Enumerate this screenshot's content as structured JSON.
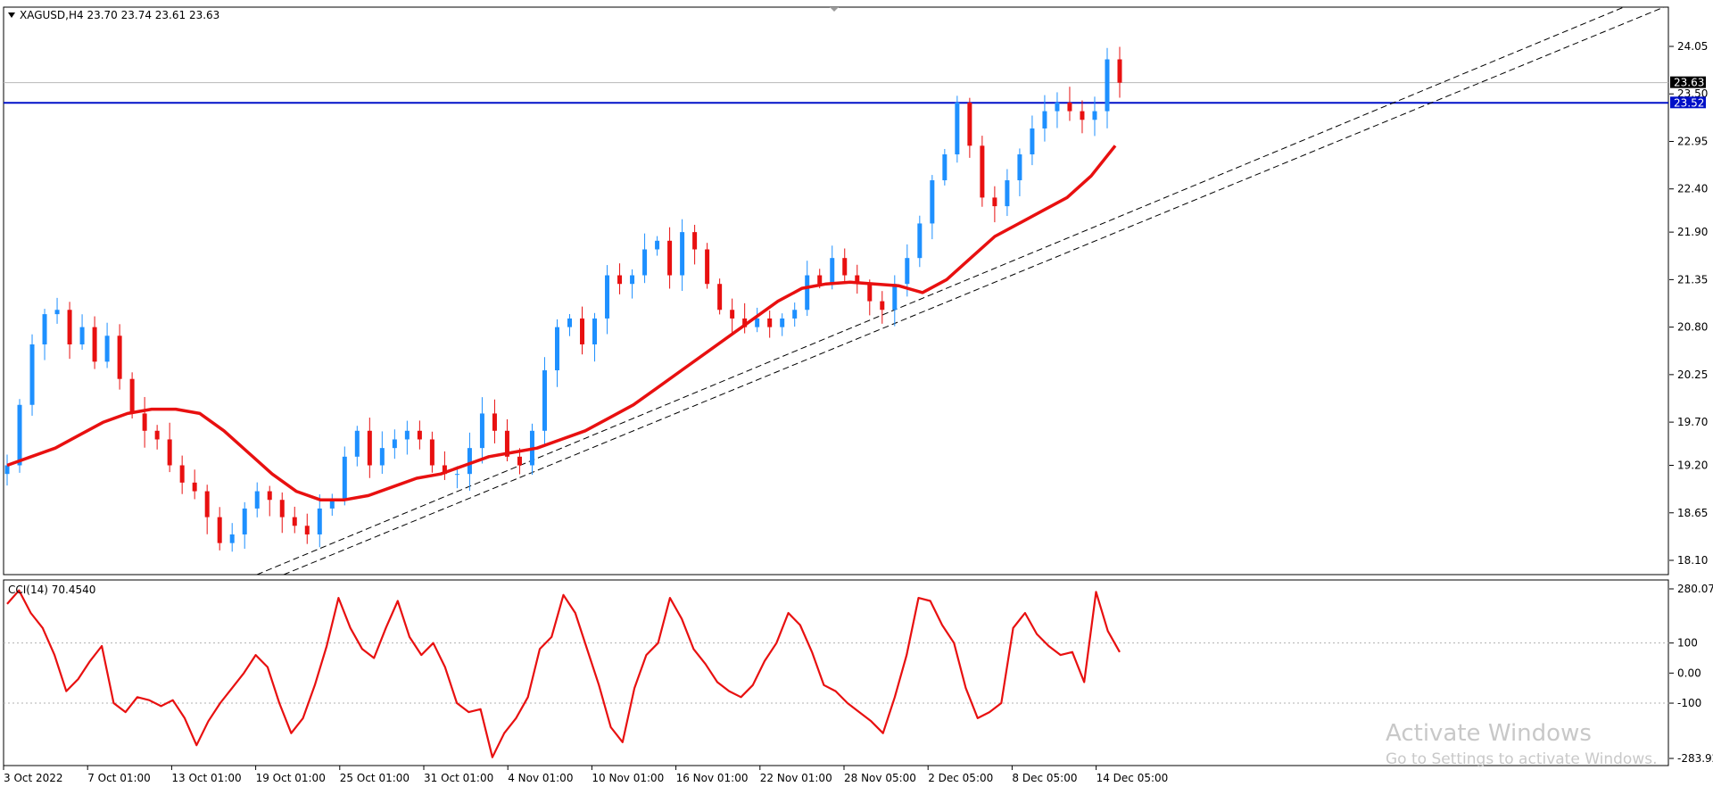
{
  "header": {
    "symbol_line": "XAGUSD,H4  23.70 23.74 23.61 23.63"
  },
  "indicator": {
    "label": "CCI(14) 70.4540"
  },
  "watermark": {
    "line1": "Activate Windows",
    "line2": "Go to Settings to activate Windows."
  },
  "colors": {
    "bull": "#1e90ff",
    "bear": "#e81010",
    "ma": "#e81010",
    "cci": "#e81010",
    "hline": "#0010c8",
    "trend": "#000000",
    "price_tag_bg": "#000000",
    "level_tag_bg": "#0010c8"
  },
  "chart_data": [
    {
      "type": "line",
      "y_ticks": [
        "24.05",
        "23.50",
        "22.95",
        "22.40",
        "21.90",
        "21.35",
        "20.80",
        "20.25",
        "19.70",
        "19.20",
        "18.65",
        "18.10"
      ],
      "ylim": [
        17.97,
        24.44
      ],
      "x_ticks": [
        "3 Oct 2022",
        "7 Oct 01:00",
        "13 Oct 01:00",
        "19 Oct 01:00",
        "25 Oct 01:00",
        "31 Oct 01:00",
        "4 Nov 01:00",
        "10 Nov 01:00",
        "16 Nov 01:00",
        "22 Nov 01:00",
        "28 Nov 05:00",
        "2 Dec 05:00",
        "8 Dec 05:00",
        "14 Dec 05:00"
      ],
      "current_price": "23.63",
      "horizontal_level": "23.52",
      "series": [
        {
          "style": "candles",
          "close": [
            19.2,
            19.9,
            20.6,
            20.95,
            21.0,
            20.6,
            20.8,
            20.4,
            20.7,
            20.2,
            19.8,
            19.6,
            19.5,
            19.2,
            19.0,
            18.9,
            18.6,
            18.3,
            18.4,
            18.7,
            18.9,
            18.8,
            18.6,
            18.5,
            18.4,
            18.7,
            18.8,
            19.3,
            19.6,
            19.2,
            19.4,
            19.5,
            19.6,
            19.5,
            19.2,
            19.1,
            19.1,
            19.4,
            19.8,
            19.6,
            19.3,
            19.2,
            19.6,
            20.3,
            20.8,
            20.9,
            20.6,
            20.9,
            21.4,
            21.3,
            21.4,
            21.7,
            21.8,
            21.4,
            21.9,
            21.7,
            21.3,
            21.0,
            20.9,
            20.8,
            20.9,
            20.8,
            20.9,
            21.0,
            21.4,
            21.3,
            21.6,
            21.4,
            21.3,
            21.1,
            21.0,
            21.3,
            21.6,
            22.0,
            22.5,
            22.8,
            23.4,
            22.9,
            22.3,
            22.2,
            22.5,
            22.8,
            23.1,
            23.3,
            23.4,
            23.3,
            23.2,
            23.3,
            23.9,
            23.63
          ],
          "ma": [
            19.2,
            19.3,
            19.4,
            19.55,
            19.7,
            19.8,
            19.85,
            19.85,
            19.8,
            19.6,
            19.35,
            19.1,
            18.9,
            18.8,
            18.8,
            18.85,
            18.95,
            19.05,
            19.1,
            19.2,
            19.3,
            19.35,
            19.4,
            19.5,
            19.6,
            19.75,
            19.9,
            20.1,
            20.3,
            20.5,
            20.7,
            20.9,
            21.1,
            21.25,
            21.3,
            21.32,
            21.3,
            21.28,
            21.2,
            21.35,
            21.6,
            21.85,
            22.0,
            22.15,
            22.3,
            22.55,
            22.9
          ]
        },
        {
          "name": "CCI(14)",
          "values": [
            230,
            275,
            200,
            150,
            60,
            -60,
            -20,
            40,
            90,
            -100,
            -130,
            -80,
            -90,
            -110,
            -90,
            -150,
            -240,
            -160,
            -100,
            -50,
            0,
            60,
            20,
            -100,
            -200,
            -150,
            -40,
            90,
            250,
            150,
            80,
            50,
            150,
            240,
            120,
            60,
            100,
            20,
            -100,
            -130,
            -120,
            -280,
            -200,
            -150,
            -80,
            80,
            120,
            260,
            200,
            80,
            -40,
            -180,
            -230,
            -50,
            60,
            100,
            250,
            180,
            80,
            30,
            -30,
            -60,
            -80,
            -40,
            40,
            100,
            200,
            160,
            70,
            -40,
            -60,
            -100,
            -130,
            -160,
            -200,
            -80,
            60,
            250,
            240,
            160,
            100,
            -50,
            -150,
            -130,
            -100,
            150,
            200,
            130,
            90,
            60,
            70,
            -30,
            270,
            140,
            70
          ],
          "ylim": [
            -283.925,
            280.072
          ],
          "y_ticks": [
            "280.072",
            "100",
            "0.00",
            "-100",
            "-283.925"
          ]
        }
      ]
    }
  ]
}
